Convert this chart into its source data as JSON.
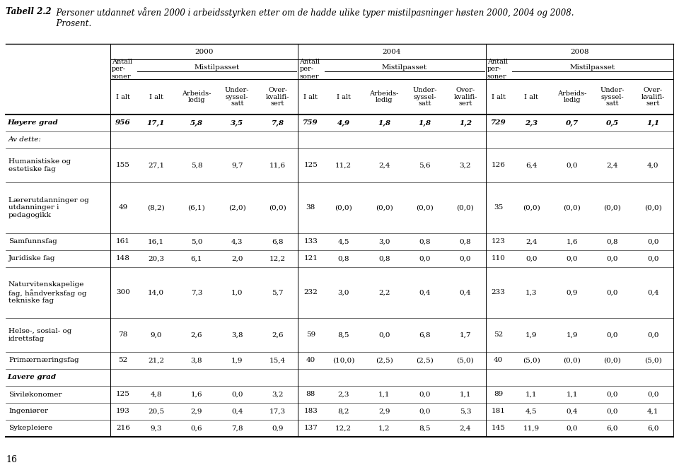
{
  "title_bold": "Tabell 2.2",
  "title_text": "  Personer utdannet våren 2000 i arbeidsstyrken etter om de hadde ulike typer mistilpasninger høsten 2000, 2004 og 2008.\n  Prosent.",
  "year_headers": [
    "2000",
    "2004",
    "2008"
  ],
  "rows": [
    {
      "label": "Høyere grad",
      "style": "bold_italic",
      "indent": 0,
      "data": [
        "956",
        "17,1",
        "5,8",
        "3,5",
        "7,8",
        "759",
        "4,9",
        "1,8",
        "1,8",
        "1,2",
        "729",
        "2,3",
        "0,7",
        "0,5",
        "1,1"
      ]
    },
    {
      "label": "Av dette:",
      "style": "italic",
      "indent": 1,
      "data": [
        "",
        "",
        "",
        "",
        "",
        "",
        "",
        "",
        "",
        "",
        "",
        "",
        "",
        "",
        ""
      ]
    },
    {
      "label": "Humanistiske og\nestetiske fag",
      "style": "normal",
      "indent": 1,
      "data": [
        "155",
        "27,1",
        "5,8",
        "9,7",
        "11,6",
        "125",
        "11,2",
        "2,4",
        "5,6",
        "3,2",
        "126",
        "6,4",
        "0,0",
        "2,4",
        "4,0"
      ]
    },
    {
      "label": "Lærerutdanninger og\nutdanninger i\npedagogikk",
      "style": "normal",
      "indent": 1,
      "data": [
        "49",
        "(8,2)",
        "(6,1)",
        "(2,0)",
        "(0,0)",
        "38",
        "(0,0)",
        "(0,0)",
        "(0,0)",
        "(0,0)",
        "35",
        "(0,0)",
        "(0,0)",
        "(0,0)",
        "(0,0)"
      ]
    },
    {
      "label": "Samfunnsfag",
      "style": "normal",
      "indent": 1,
      "data": [
        "161",
        "16,1",
        "5,0",
        "4,3",
        "6,8",
        "133",
        "4,5",
        "3,0",
        "0,8",
        "0,8",
        "123",
        "2,4",
        "1,6",
        "0,8",
        "0,0"
      ]
    },
    {
      "label": "Juridiske fag",
      "style": "normal",
      "indent": 1,
      "data": [
        "148",
        "20,3",
        "6,1",
        "2,0",
        "12,2",
        "121",
        "0,8",
        "0,8",
        "0,0",
        "0,0",
        "110",
        "0,0",
        "0,0",
        "0,0",
        "0,0"
      ]
    },
    {
      "label": "Naturvitenskapelige\nfag, håndverksfag og\ntekniske fag",
      "style": "normal",
      "indent": 1,
      "data": [
        "300",
        "14,0",
        "7,3",
        "1,0",
        "5,7",
        "232",
        "3,0",
        "2,2",
        "0,4",
        "0,4",
        "233",
        "1,3",
        "0,9",
        "0,0",
        "0,4"
      ]
    },
    {
      "label": "Helse-, sosial- og\nidrettsfag",
      "style": "normal",
      "indent": 1,
      "data": [
        "78",
        "9,0",
        "2,6",
        "3,8",
        "2,6",
        "59",
        "8,5",
        "0,0",
        "6,8",
        "1,7",
        "52",
        "1,9",
        "1,9",
        "0,0",
        "0,0"
      ]
    },
    {
      "label": "Primærnæringsfag",
      "style": "normal",
      "indent": 1,
      "data": [
        "52",
        "21,2",
        "3,8",
        "1,9",
        "15,4",
        "40",
        "(10,0)",
        "(2,5)",
        "(2,5)",
        "(5,0)",
        "40",
        "(5,0)",
        "(0,0)",
        "(0,0)",
        "(5,0)"
      ]
    },
    {
      "label": "Lavere grad",
      "style": "bold_italic",
      "indent": 0,
      "data": [
        "",
        "",
        "",
        "",
        "",
        "",
        "",
        "",
        "",
        "",
        "",
        "",
        "",
        "",
        ""
      ]
    },
    {
      "label": "Siviløkonomer",
      "style": "normal",
      "indent": 1,
      "data": [
        "125",
        "4,8",
        "1,6",
        "0,0",
        "3,2",
        "88",
        "2,3",
        "1,1",
        "0,0",
        "1,1",
        "89",
        "1,1",
        "1,1",
        "0,0",
        "0,0"
      ]
    },
    {
      "label": "Ingeniører",
      "style": "normal",
      "indent": 1,
      "data": [
        "193",
        "20,5",
        "2,9",
        "0,4",
        "17,3",
        "183",
        "8,2",
        "2,9",
        "0,0",
        "5,3",
        "181",
        "4,5",
        "0,4",
        "0,0",
        "4,1"
      ]
    },
    {
      "label": "Sykepleiere",
      "style": "normal",
      "indent": 1,
      "data": [
        "216",
        "9,3",
        "0,6",
        "7,8",
        "0,9",
        "137",
        "12,2",
        "1,2",
        "8,5",
        "2,4",
        "145",
        "11,9",
        "0,0",
        "6,0",
        "6,0"
      ]
    }
  ],
  "page_number": "16",
  "bg_color": "#ffffff",
  "line_color": "#000000",
  "font_size_title": 8.5,
  "font_size_table": 7.5,
  "font_size_header": 7.5
}
